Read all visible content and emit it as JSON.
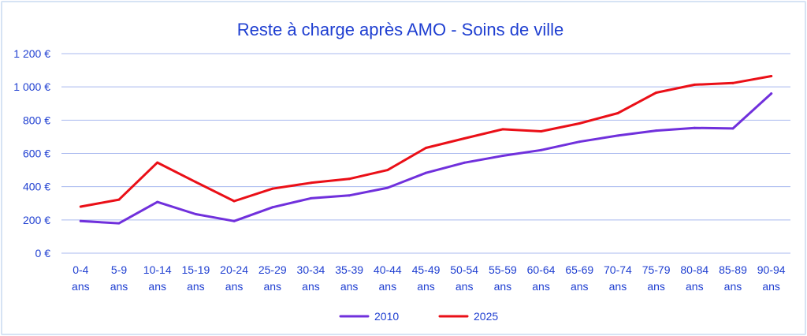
{
  "chart_data": {
    "type": "line",
    "title": "Reste à charge après AMO - Soins de ville",
    "xlabel": "",
    "ylabel": "",
    "categories": [
      [
        "0-4",
        "ans"
      ],
      [
        "5-9",
        "ans"
      ],
      [
        "10-14",
        "ans"
      ],
      [
        "15-19",
        "ans"
      ],
      [
        "20-24",
        "ans"
      ],
      [
        "25-29",
        "ans"
      ],
      [
        "30-34",
        "ans"
      ],
      [
        "35-39",
        "ans"
      ],
      [
        "40-44",
        "ans"
      ],
      [
        "45-49",
        "ans"
      ],
      [
        "50-54",
        "ans"
      ],
      [
        "55-59",
        "ans"
      ],
      [
        "60-64",
        "ans"
      ],
      [
        "65-69",
        "ans"
      ],
      [
        "70-74",
        "ans"
      ],
      [
        "75-79",
        "ans"
      ],
      [
        "80-84",
        "ans"
      ],
      [
        "85-89",
        "ans"
      ],
      [
        "90-94",
        "ans"
      ]
    ],
    "ylim": [
      0,
      1200
    ],
    "yticks": [
      0,
      200,
      400,
      600,
      800,
      1000,
      1200
    ],
    "ytick_labels": [
      "0 €",
      "200 €",
      "400 €",
      "600 €",
      "800 €",
      "1 000 €",
      "1 200 €"
    ],
    "grid": true,
    "legend": "bottom",
    "series": [
      {
        "name": "2010",
        "color": "#7030dc",
        "values": [
          193,
          180,
          308,
          235,
          193,
          276,
          330,
          347,
          393,
          483,
          544,
          586,
          620,
          670,
          707,
          737,
          753,
          750,
          960
        ]
      },
      {
        "name": "2025",
        "color": "#ea0f17",
        "values": [
          280,
          322,
          545,
          428,
          313,
          388,
          423,
          447,
          500,
          633,
          690,
          745,
          733,
          780,
          842,
          965,
          1013,
          1023,
          1065
        ]
      }
    ]
  }
}
